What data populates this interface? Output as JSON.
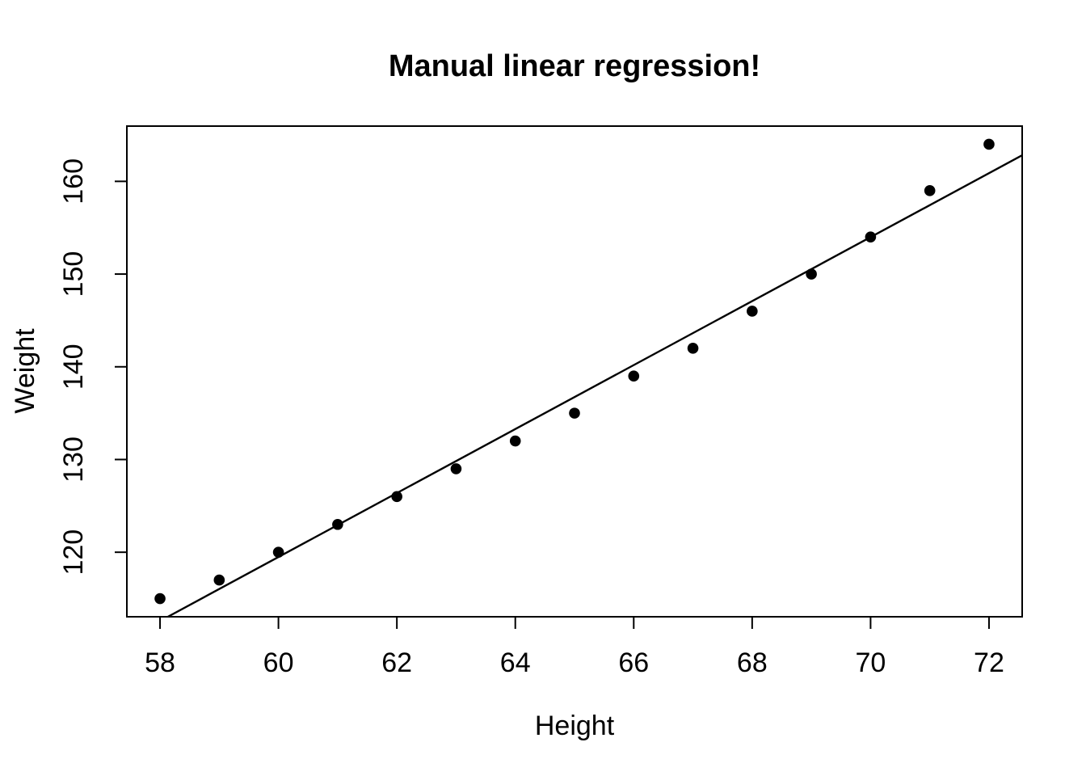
{
  "chart_data": {
    "type": "scatter",
    "title": "Manual linear regression!",
    "xlabel": "Height",
    "ylabel": "Weight",
    "x": [
      58,
      59,
      60,
      61,
      62,
      63,
      64,
      65,
      66,
      67,
      68,
      69,
      70,
      71,
      72
    ],
    "y": [
      115,
      117,
      120,
      123,
      126,
      129,
      132,
      135,
      139,
      142,
      146,
      150,
      154,
      159,
      164
    ],
    "xticks": [
      58,
      60,
      62,
      64,
      66,
      68,
      70,
      72
    ],
    "yticks": [
      120,
      130,
      140,
      150,
      160
    ],
    "xlim": [
      57.44,
      72.56
    ],
    "ylim": [
      113.04,
      165.96
    ],
    "regression_line": {
      "slope": 3.45,
      "intercept": -87.51667
    },
    "grid": false,
    "legend_position": "none",
    "point_color": "#000000",
    "line_color": "#000000",
    "axis_color": "#000000",
    "background_color": "#ffffff"
  }
}
